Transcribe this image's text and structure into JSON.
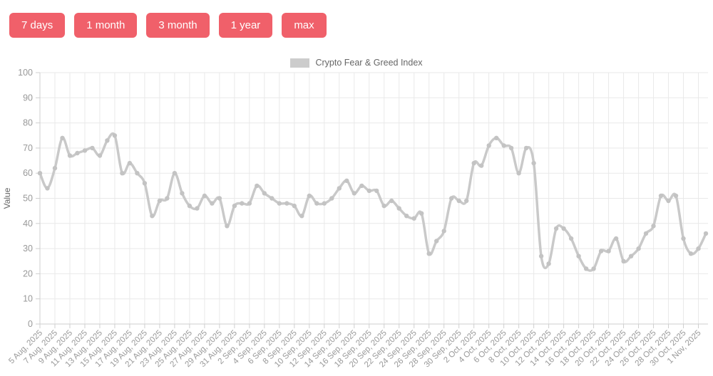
{
  "toolbar": {
    "buttons": [
      {
        "label": "7 days"
      },
      {
        "label": "1 month"
      },
      {
        "label": "3 month"
      },
      {
        "label": "1 year"
      },
      {
        "label": "max"
      }
    ]
  },
  "legend": {
    "label": "Crypto Fear & Greed Index"
  },
  "colors": {
    "button_bg": "#f0606a",
    "line": "#c9c9c9",
    "marker": "#c3c3c3",
    "grid": "#e9e9e9",
    "axis_line": "#cfcfcf",
    "tick_text": "#999999",
    "axis_title_text": "#666666",
    "legend_swatch": "#cccccc"
  },
  "chart_data": {
    "type": "line",
    "title": "Crypto Fear & Greed Index",
    "xlabel": "",
    "ylabel": "Value",
    "ylim": [
      0,
      100
    ],
    "yticks": [
      0,
      10,
      20,
      30,
      40,
      50,
      60,
      70,
      80,
      90,
      100
    ],
    "grid": true,
    "legend_position": "top",
    "tick_label_step": 2,
    "x": [
      "5 Aug, 2025",
      "6 Aug, 2025",
      "7 Aug, 2025",
      "8 Aug, 2025",
      "9 Aug, 2025",
      "10 Aug, 2025",
      "11 Aug, 2025",
      "12 Aug, 2025",
      "13 Aug, 2025",
      "14 Aug, 2025",
      "15 Aug, 2025",
      "16 Aug, 2025",
      "17 Aug, 2025",
      "18 Aug, 2025",
      "19 Aug, 2025",
      "20 Aug, 2025",
      "21 Aug, 2025",
      "22 Aug, 2025",
      "23 Aug, 2025",
      "24 Aug, 2025",
      "25 Aug, 2025",
      "26 Aug, 2025",
      "27 Aug, 2025",
      "28 Aug, 2025",
      "29 Aug, 2025",
      "30 Aug, 2025",
      "31 Aug, 2025",
      "1 Sep, 2025",
      "2 Sep, 2025",
      "3 Sep, 2025",
      "4 Sep, 2025",
      "5 Sep, 2025",
      "6 Sep, 2025",
      "7 Sep, 2025",
      "8 Sep, 2025",
      "9 Sep, 2025",
      "10 Sep, 2025",
      "11 Sep, 2025",
      "12 Sep, 2025",
      "13 Sep, 2025",
      "14 Sep, 2025",
      "15 Sep, 2025",
      "16 Sep, 2025",
      "17 Sep, 2025",
      "18 Sep, 2025",
      "19 Sep, 2025",
      "20 Sep, 2025",
      "21 Sep, 2025",
      "22 Sep, 2025",
      "23 Sep, 2025",
      "24 Sep, 2025",
      "25 Sep, 2025",
      "26 Sep, 2025",
      "27 Sep, 2025",
      "28 Sep, 2025",
      "29 Sep, 2025",
      "30 Sep, 2025",
      "1 Oct, 2025",
      "2 Oct, 2025",
      "3 Oct, 2025",
      "4 Oct, 2025",
      "5 Oct, 2025",
      "6 Oct, 2025",
      "7 Oct, 2025",
      "8 Oct, 2025",
      "9 Oct, 2025",
      "10 Oct, 2025",
      "11 Oct, 2025",
      "12 Oct, 2025",
      "13 Oct, 2025",
      "14 Oct, 2025",
      "15 Oct, 2025",
      "16 Oct, 2025",
      "17 Oct, 2025",
      "18 Oct, 2025",
      "19 Oct, 2025",
      "20 Oct, 2025",
      "21 Oct, 2025",
      "22 Oct, 2025",
      "23 Oct, 2025",
      "24 Oct, 2025",
      "25 Oct, 2025",
      "26 Oct, 2025",
      "27 Oct, 2025",
      "28 Oct, 2025",
      "29 Oct, 2025",
      "30 Oct, 2025",
      "31 Oct, 2025",
      "1 Nov, 2025",
      "2 Nov, 2025"
    ],
    "series": [
      {
        "name": "Crypto Fear & Greed Index",
        "values": [
          60,
          54,
          62,
          74,
          67,
          68,
          69,
          70,
          67,
          73,
          75,
          60,
          64,
          60,
          56,
          43,
          49,
          50,
          60,
          52,
          47,
          46,
          51,
          48,
          50,
          39,
          47,
          48,
          48,
          55,
          52,
          50,
          48,
          48,
          47,
          43,
          51,
          48,
          48,
          50,
          54,
          57,
          52,
          55,
          53,
          53,
          47,
          49,
          46,
          43,
          42,
          44,
          28,
          33,
          37,
          50,
          49,
          49,
          64,
          63,
          71,
          74,
          71,
          70,
          60,
          70,
          64,
          27,
          24,
          38,
          38,
          34,
          27,
          22,
          22,
          29,
          29,
          34,
          25,
          27,
          30,
          36,
          39,
          51,
          49,
          51,
          34,
          28,
          30,
          36
        ]
      }
    ]
  }
}
